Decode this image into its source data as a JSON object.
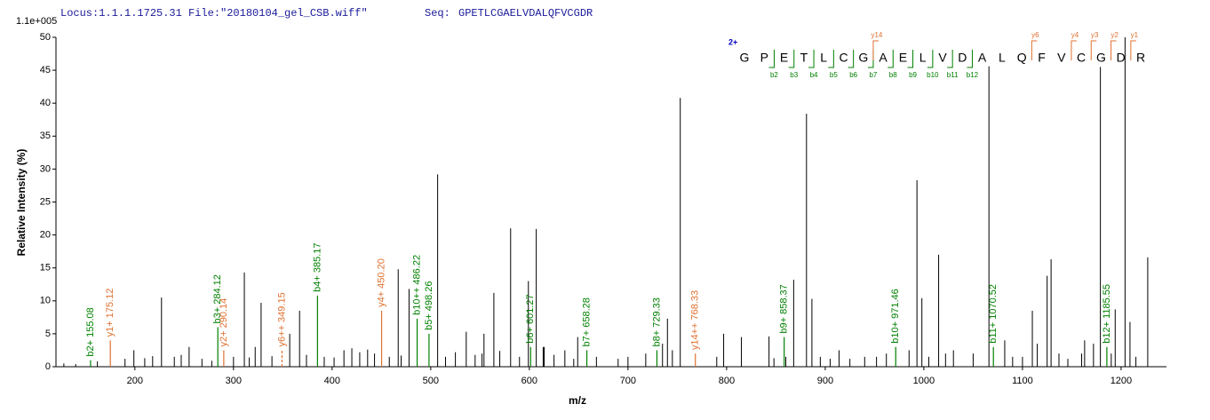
{
  "chart_data": {
    "type": "spectrum",
    "locus": "Locus:1.1.1.1725.31 File:\"20180104_gel_CSB.wiff\"",
    "seq_label": "Seq:",
    "sequence": "GPETLCGAELVDALQFVCGDR",
    "scale_label": "1.1e+005",
    "x_label": "m/z",
    "y_label": "Relative  Intensity (%)",
    "xlim": [
      120,
      1246
    ],
    "ylim": [
      0,
      50
    ],
    "xticks": [
      200,
      300,
      400,
      500,
      600,
      700,
      800,
      900,
      1000,
      1100,
      1200
    ],
    "yticks": [
      0,
      5,
      10,
      15,
      20,
      25,
      30,
      35,
      40,
      45,
      50
    ],
    "color": "#000000",
    "peaks": {
      "x": [
        128,
        140,
        162,
        190,
        199,
        210,
        218,
        227,
        240,
        247,
        255,
        268,
        278,
        300,
        311,
        316,
        322,
        328,
        339,
        357,
        367,
        374,
        392,
        402,
        412,
        420,
        428,
        436,
        443,
        458,
        467,
        470,
        478,
        507,
        515,
        525,
        536,
        545,
        552,
        554,
        564,
        570,
        581,
        590,
        599,
        607,
        614,
        615,
        625,
        636,
        645,
        649,
        668,
        690,
        700,
        718,
        735,
        740,
        745,
        753,
        790,
        797,
        815,
        843,
        848,
        860,
        868,
        881,
        886.5,
        895,
        905,
        914,
        925,
        940,
        952,
        962,
        985,
        993,
        998,
        1005,
        1015,
        1022,
        1030,
        1050,
        1066,
        1082,
        1090,
        1100,
        1110,
        1115,
        1125,
        1129,
        1137,
        1146,
        1160,
        1163,
        1172,
        1179,
        1190,
        1194,
        1204,
        1209,
        1215,
        1227
      ],
      "values": [
        0.5,
        0.4,
        0.8,
        1.2,
        2.5,
        1.3,
        1.6,
        10.5,
        1.5,
        1.8,
        3,
        1.2,
        0.9,
        1.5,
        14.3,
        1.4,
        3,
        9.7,
        1.6,
        5,
        8.5,
        1.8,
        1.5,
        1.4,
        2.5,
        2.8,
        2.2,
        2.6,
        2,
        1.5,
        14.8,
        1.7,
        11.8,
        29.2,
        1.5,
        2.2,
        5.3,
        1.8,
        2,
        5,
        11.2,
        2.4,
        21,
        1.5,
        13,
        20.9,
        3,
        3,
        1.8,
        2.5,
        1.2,
        4.5,
        1.5,
        1.2,
        1.5,
        2,
        3.5,
        7.3,
        2.5,
        40.8,
        1.5,
        5,
        4.5,
        4.6,
        1.3,
        1.5,
        13.2,
        38.4,
        10.3,
        1.5,
        1.2,
        2.5,
        1.2,
        1.5,
        1.5,
        2,
        2.5,
        28.3,
        10.4,
        1.5,
        17,
        2,
        2.5,
        2,
        45.6,
        4,
        1.5,
        1.5,
        8.5,
        3.5,
        13.8,
        16.3,
        2,
        1.2,
        2,
        4,
        3.5,
        45.5,
        2,
        8.7,
        50,
        6.8,
        1.5,
        16.6
      ]
    },
    "annotations": [
      {
        "label": "b2+ 155.08",
        "x": 155.08,
        "value": 1,
        "color": "#008000"
      },
      {
        "label": "y1+ 175.12",
        "x": 175.12,
        "value": 4,
        "color": "#e07030"
      },
      {
        "label": "b3+ 284.12",
        "x": 284.12,
        "value": 6,
        "color": "#008000"
      },
      {
        "label": "y2+ 290.14",
        "x": 290.14,
        "value": 2.5,
        "color": "#e07030"
      },
      {
        "label": "y6++ 349.15",
        "x": 349.15,
        "value": 2.5,
        "color": "#e07030",
        "style": "dashed"
      },
      {
        "label": "b4+ 385.17",
        "x": 385.17,
        "value": 10.8,
        "color": "#008000"
      },
      {
        "label": "y4+ 450.20",
        "x": 450.2,
        "value": 8.5,
        "color": "#e07030"
      },
      {
        "label": "b10++ 486.22",
        "x": 486.22,
        "value": 7.3,
        "color": "#008000"
      },
      {
        "label": "b5+ 498.26",
        "x": 498.26,
        "value": 5,
        "color": "#008000"
      },
      {
        "label": "b6+ 601.27",
        "x": 601.27,
        "value": 3,
        "color": "#008000"
      },
      {
        "label": "b7+ 658.28",
        "x": 658.28,
        "value": 2.5,
        "color": "#008000"
      },
      {
        "label": "b8+ 729.33",
        "x": 729.33,
        "value": 2.5,
        "color": "#008000"
      },
      {
        "label": "y14++ 768.33",
        "x": 768.33,
        "value": 2,
        "color": "#e07030"
      },
      {
        "label": "b9+ 858.37",
        "x": 858.37,
        "value": 4.5,
        "color": "#008000"
      },
      {
        "label": "b10+ 971.46",
        "x": 971.46,
        "value": 3,
        "color": "#008000"
      },
      {
        "label": "b11+ 1070.52",
        "x": 1070.52,
        "value": 3,
        "color": "#008000"
      },
      {
        "label": "b12+ 1185.55",
        "x": 1185.55,
        "value": 3,
        "color": "#008000"
      }
    ],
    "fragment_map": {
      "charge": "2+",
      "residues": [
        "G",
        "P",
        "E",
        "T",
        "L",
        "C",
        "G",
        "A",
        "E",
        "L",
        "V",
        "D",
        "A",
        "L",
        "Q",
        "F",
        "V",
        "C",
        "G",
        "D",
        "R"
      ],
      "b_ions": [
        "b2",
        "b3",
        "b4",
        "b5",
        "b6",
        "b7",
        "b8",
        "b9",
        "b10",
        "b11",
        "b12"
      ],
      "y_ions": [
        "y14",
        "y6",
        "y4",
        "y3",
        "y2",
        "y1"
      ],
      "b_color": "#008000",
      "y_color": "#e07030",
      "charge_color": "#0000c0"
    }
  }
}
